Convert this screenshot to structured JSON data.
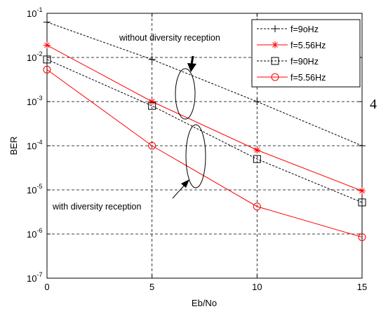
{
  "chart_data": {
    "type": "line",
    "xlabel": "Eb/No",
    "ylabel": "BER",
    "xlim": [
      0,
      15
    ],
    "ylim": [
      1e-07,
      0.1
    ],
    "yscale": "log",
    "grid": true,
    "legend_position": "top-right",
    "x_ticks": [
      "0",
      "5",
      "10",
      "15"
    ],
    "y_ticks": [
      {
        "base": "10",
        "exp": "-7"
      },
      {
        "base": "10",
        "exp": "-6"
      },
      {
        "base": "10",
        "exp": "-5"
      },
      {
        "base": "10",
        "exp": "-4"
      },
      {
        "base": "10",
        "exp": "-3"
      },
      {
        "base": "10",
        "exp": "-2"
      },
      {
        "base": "10",
        "exp": "-1"
      }
    ],
    "series": [
      {
        "name": "f=9oHz",
        "color": "#000000",
        "dash": true,
        "marker": "plus",
        "x": [
          0,
          5,
          10,
          15
        ],
        "y": [
          0.063,
          0.009,
          0.001,
          0.0001
        ]
      },
      {
        "name": "f=5.56Hz",
        "color": "#ff0000",
        "dash": false,
        "marker": "star",
        "x": [
          0,
          5,
          10,
          15
        ],
        "y": [
          0.019,
          0.001,
          8e-05,
          9.5e-06
        ]
      },
      {
        "name": "f=90Hz",
        "color": "#000000",
        "dash": true,
        "marker": "square",
        "x": [
          0,
          5,
          10,
          15
        ],
        "y": [
          0.009,
          0.0008,
          5e-05,
          5.2e-06
        ]
      },
      {
        "name": "f=5.56Hz",
        "color": "#ff0000",
        "dash": false,
        "marker": "circle",
        "x": [
          0,
          5,
          10,
          15
        ],
        "y": [
          0.0053,
          0.0001,
          4.2e-06,
          8.5e-07
        ]
      }
    ],
    "annotations": [
      {
        "text": "without diversity reception"
      },
      {
        "text": "with diversity reception"
      }
    ]
  },
  "side_text": "4"
}
